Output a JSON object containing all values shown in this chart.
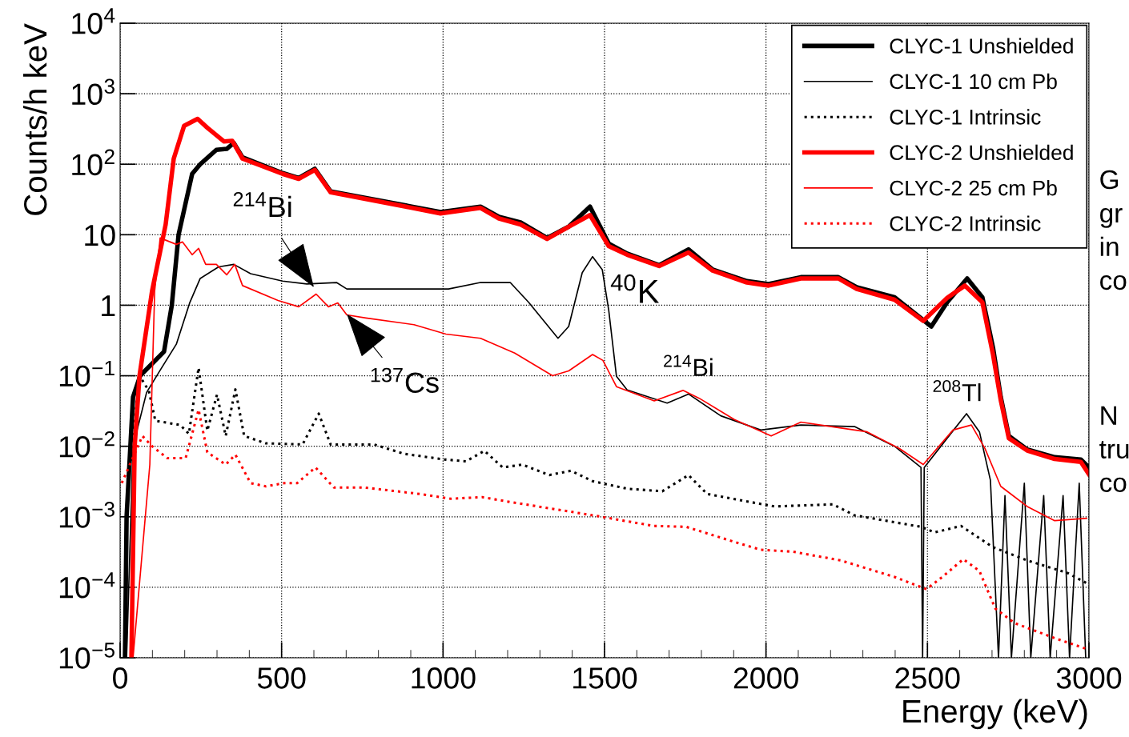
{
  "chart_data": {
    "type": "line",
    "xlabel": "Energy (keV)",
    "ylabel": "Counts/h keV",
    "log": "y",
    "grid": true,
    "legend": "top right",
    "xlim": [
      0,
      3000
    ],
    "xticks": [
      0,
      500,
      1000,
      1500,
      2000,
      2500,
      3000
    ],
    "ylim": [
      1e-05,
      10000
    ],
    "yticks": [
      {
        "value": 1e-05,
        "label": "10$^{−5}$"
      },
      {
        "value": 0.0001,
        "label": "10$^{−4}$"
      },
      {
        "value": 0.001,
        "label": "10$^{−3}$"
      },
      {
        "value": 0.01,
        "label": "10$^{−2}$"
      },
      {
        "value": 0.1,
        "label": "10$^{−1}$"
      },
      1,
      10,
      {
        "value": 100,
        "label": "10$^{2}$"
      },
      {
        "value": 1000,
        "label": "10$^{3}$"
      },
      {
        "value": 10000,
        "label": "10$^{4}$"
      }
    ],
    "series": [
      {
        "name": "CLYC-1 Unshielded",
        "color": "#000000",
        "line_style": "solid",
        "x": [
          15,
          20,
          40,
          62,
          100,
          136,
          160,
          181,
          223,
          248,
          298,
          330,
          352,
          379,
          503,
          553,
          603,
          652,
          885,
          992,
          1116,
          1173,
          1240,
          1322,
          1389,
          1455,
          1513,
          1570,
          1669,
          1760,
          1835,
          1941,
          2008,
          2108,
          2224,
          2281,
          2398,
          2512,
          2561,
          2623,
          2670,
          2703,
          2727,
          2752,
          2809,
          2894,
          2975,
          3000
        ],
        "values": [
          1e-05,
          0.001,
          0.05,
          0.1,
          0.15,
          0.22,
          1,
          10,
          73,
          100,
          160,
          165,
          200,
          125,
          75,
          64,
          86,
          41,
          26,
          21,
          25,
          18,
          15,
          9,
          13,
          25,
          7.5,
          5.4,
          3.7,
          6.2,
          3.2,
          2.2,
          2.0,
          2.5,
          2.5,
          1.8,
          1.3,
          0.5,
          1.1,
          2.4,
          1.3,
          0.25,
          0.05,
          0.014,
          0.009,
          0.007,
          0.0065,
          0.005
        ]
      },
      {
        "name": "CLYC-1 10 cm Pb",
        "color": "#000000",
        "line_style": "solid",
        "x": [
          20,
          40,
          82,
          124,
          174,
          216,
          248,
          305,
          352,
          404,
          503,
          578,
          670,
          702,
          1017,
          1116,
          1208,
          1265,
          1356,
          1389,
          1431,
          1463,
          1493,
          1513,
          1537,
          1570,
          1694,
          1760,
          1860,
          1984,
          2108,
          2274,
          2398,
          2480,
          2485,
          2490,
          2561,
          2621,
          2661,
          2695,
          2720,
          2740,
          2760,
          2800,
          2820,
          2860,
          2880,
          2920,
          2940,
          2970,
          2990
        ],
        "values": [
          1e-05,
          0.01,
          0.058,
          0.12,
          0.28,
          1.1,
          2.4,
          3.5,
          3.8,
          2.8,
          2.2,
          2.0,
          2.1,
          1.7,
          1.7,
          2.1,
          2.1,
          1.1,
          0.34,
          0.5,
          2.9,
          4.9,
          3.2,
          0.85,
          0.098,
          0.063,
          0.041,
          0.055,
          0.027,
          0.017,
          0.02,
          0.019,
          0.01,
          0.005,
          1e-05,
          0.005,
          0.013,
          0.029,
          0.016,
          0.0033,
          1e-05,
          0.002,
          1e-05,
          0.003,
          1e-05,
          0.002,
          1e-05,
          0.002,
          1e-05,
          0.003,
          1e-05
        ]
      },
      {
        "name": "CLYC-1 Intrinsic",
        "color": "#000000",
        "line_style": "dotted",
        "x": [
          30,
          60,
          89,
          109,
          186,
          213,
          243,
          270,
          300,
          327,
          357,
          384,
          451,
          565,
          615,
          652,
          786,
          880,
          1004,
          1071,
          1128,
          1185,
          1245,
          1329,
          1396,
          1463,
          1570,
          1679,
          1760,
          1818,
          2026,
          2207,
          2274,
          2480,
          2522,
          2604,
          2703,
          2809,
          2933,
          3000
        ],
        "values": [
          0.005,
          0.1,
          0.061,
          0.023,
          0.02,
          0.015,
          0.13,
          0.0166,
          0.054,
          0.014,
          0.064,
          0.014,
          0.011,
          0.0106,
          0.029,
          0.0106,
          0.0106,
          0.0078,
          0.0065,
          0.0061,
          0.0086,
          0.005,
          0.0055,
          0.0039,
          0.0045,
          0.0032,
          0.0025,
          0.0023,
          0.0039,
          0.0021,
          0.0014,
          0.0015,
          0.00105,
          0.00072,
          0.0006,
          0.00074,
          0.00037,
          0.00024,
          0.00016,
          0.00011
        ]
      },
      {
        "name": "CLYC-2 Unshielded",
        "color": "#ff0000",
        "line_style": "solid",
        "x": [
          35,
          45,
          60,
          99,
          141,
          166,
          198,
          240,
          273,
          322,
          347,
          379,
          503,
          553,
          603,
          652,
          885,
          992,
          1116,
          1173,
          1240,
          1322,
          1389,
          1455,
          1513,
          1570,
          1669,
          1760,
          1835,
          1941,
          2008,
          2108,
          2224,
          2281,
          2398,
          2487,
          2561,
          2616,
          2670,
          2703,
          2727,
          2752,
          2809,
          2894,
          2975,
          3000
        ],
        "values": [
          1e-05,
          0.01,
          0.1,
          1.6,
          14,
          120,
          350,
          440,
          320,
          210,
          215,
          120,
          73,
          62,
          83,
          40,
          25,
          20,
          24,
          17,
          14,
          8.7,
          13,
          19,
          6.9,
          5.2,
          3.6,
          5.6,
          3.1,
          2.1,
          1.9,
          2.4,
          2.4,
          1.7,
          1.2,
          0.6,
          1.27,
          1.9,
          1.1,
          0.2,
          0.045,
          0.013,
          0.0087,
          0.0066,
          0.006,
          0.004
        ]
      },
      {
        "name": "CLYC-2 25 cm Pb",
        "color": "#ff0000",
        "line_style": "solid",
        "x": [
          40,
          92,
          107,
          124,
          174,
          193,
          223,
          243,
          265,
          298,
          330,
          355,
          379,
          489,
          553,
          607,
          645,
          674,
          702,
          761,
          910,
          1009,
          1116,
          1222,
          1339,
          1389,
          1463,
          1495,
          1537,
          1654,
          1743,
          1793,
          1902,
          2016,
          2108,
          2313,
          2413,
          2487,
          2579,
          2636,
          2678,
          2727,
          2809,
          2894,
          2993
        ],
        "values": [
          1e-05,
          0.0055,
          1.6,
          9,
          7.3,
          7.9,
          5.2,
          6.4,
          3.8,
          3.8,
          2.7,
          3.8,
          1.9,
          1.17,
          0.95,
          1.44,
          0.95,
          1.08,
          0.73,
          0.66,
          0.53,
          0.39,
          0.34,
          0.21,
          0.1,
          0.117,
          0.2,
          0.165,
          0.07,
          0.044,
          0.062,
          0.048,
          0.024,
          0.014,
          0.022,
          0.016,
          0.0093,
          0.0055,
          0.017,
          0.02,
          0.0093,
          0.0027,
          0.0014,
          0.00088,
          0.00095
        ]
      },
      {
        "name": "CLYC-2 Intrinsic",
        "color": "#ff0000",
        "line_style": "dotted",
        "x": [
          5,
          69,
          99,
          146,
          203,
          243,
          270,
          327,
          357,
          404,
          451,
          508,
          548,
          605,
          662,
          756,
          930,
          1024,
          1121,
          1215,
          1463,
          1654,
          1753,
          1902,
          1984,
          2083,
          2232,
          2398,
          2497,
          2546,
          2611,
          2661,
          2710,
          2770,
          2894,
          3000
        ],
        "values": [
          0.003,
          0.014,
          0.01,
          0.0068,
          0.0068,
          0.033,
          0.0082,
          0.0055,
          0.0076,
          0.003,
          0.0027,
          0.003,
          0.003,
          0.005,
          0.0026,
          0.0026,
          0.0021,
          0.0018,
          0.0019,
          0.0016,
          0.00105,
          0.00074,
          0.00072,
          0.00044,
          0.00034,
          0.00032,
          0.00024,
          0.00014,
          9.4e-05,
          0.00014,
          0.00025,
          0.00017,
          5e-05,
          3.1e-05,
          1.9e-05,
          1.3e-05
        ]
      }
    ],
    "annotations": [
      {
        "text": "$^{214}$Bi",
        "x": 600,
        "y": 1.8
      },
      {
        "text": "$^{137}$Cs",
        "x": 702,
        "y": 0.75
      },
      {
        "text": "$^{40}$K",
        "x": 1463,
        "y": 4.9
      },
      {
        "text": "$^{214}$Bi",
        "x": 1760,
        "y": 0.055
      },
      {
        "text": "$^{208}$Tl",
        "x": 2623,
        "y": 0.029
      },
      "G\ngr\nin\nco",
      "N\ntru\nco"
    ]
  }
}
